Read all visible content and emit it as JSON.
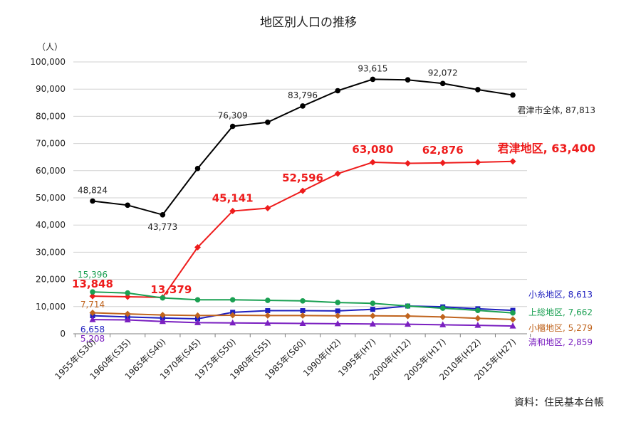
{
  "chart_data": {
    "type": "line",
    "title": "地区別人口の推移",
    "y_unit": "（人）",
    "source": "資料：住民基本台帳",
    "ylim": [
      0,
      100000
    ],
    "y_ticks": [
      "0",
      "10,000",
      "20,000",
      "30,000",
      "40,000",
      "50,000",
      "60,000",
      "70,000",
      "80,000",
      "90,000",
      "100,000"
    ],
    "categories": [
      "1955年(S30)",
      "1960年(S35)",
      "1965年(S40)",
      "1970年(S45)",
      "1975年(S50)",
      "1980年(S55)",
      "1985年(S60)",
      "1990年(H2)",
      "1995年(H7)",
      "2000年(H12)",
      "2005年(H17)",
      "2010年(H22)",
      "2015年(H27)"
    ],
    "grid": "horizontal",
    "series": [
      {
        "name": "君津市全体",
        "color": "#000000",
        "marker": "circle",
        "values": [
          48824,
          47300,
          43773,
          60800,
          76309,
          77800,
          83796,
          89400,
          93615,
          93400,
          92072,
          89800,
          87813
        ],
        "data_labels": [
          {
            "index": 0,
            "text": "48,824",
            "pos": "above"
          },
          {
            "index": 2,
            "text": "43,773",
            "pos": "below"
          },
          {
            "index": 4,
            "text": "76,309",
            "pos": "above"
          },
          {
            "index": 6,
            "text": "83,796",
            "pos": "above"
          },
          {
            "index": 8,
            "text": "93,615",
            "pos": "above"
          },
          {
            "index": 10,
            "text": "92,072",
            "pos": "above"
          }
        ],
        "end_label": "君津市全体, 87,813"
      },
      {
        "name": "君津地区",
        "color": "#ee1c1c",
        "marker": "diamond",
        "big_labels": true,
        "values": [
          13848,
          13600,
          13379,
          31800,
          45141,
          46200,
          52596,
          58900,
          63080,
          62700,
          62876,
          63100,
          63400
        ],
        "data_labels": [
          {
            "index": 0,
            "text": "13,848",
            "pos": "above"
          },
          {
            "index": 2,
            "text": "13,379",
            "pos": "below"
          },
          {
            "index": 4,
            "text": "45,141",
            "pos": "above"
          },
          {
            "index": 6,
            "text": "52,596",
            "pos": "above"
          },
          {
            "index": 8,
            "text": "63,080",
            "pos": "above"
          },
          {
            "index": 10,
            "text": "62,876",
            "pos": "above"
          }
        ],
        "end_label": "君津地区, 63,400"
      },
      {
        "name": "小糸地区",
        "color": "#1f1fbf",
        "marker": "square",
        "values": [
          6658,
          6200,
          5800,
          5500,
          7900,
          8500,
          8500,
          8400,
          9000,
          10200,
          9900,
          9200,
          8613
        ],
        "data_labels": [
          {
            "index": 0,
            "text": "6,658",
            "pos": "below"
          }
        ],
        "end_label": "小糸地区, 8,613"
      },
      {
        "name": "上総地区",
        "color": "#1aa052",
        "marker": "circle",
        "values": [
          15396,
          15000,
          13200,
          12500,
          12500,
          12300,
          12100,
          11500,
          11200,
          10200,
          9400,
          8600,
          7662
        ],
        "data_labels": [
          {
            "index": 0,
            "text": "15,396",
            "pos": "above"
          }
        ],
        "end_label": "上総地区, 7,662"
      },
      {
        "name": "小櫃地区",
        "color": "#c0641e",
        "marker": "diamond",
        "values": [
          7714,
          7300,
          6900,
          6700,
          6800,
          6700,
          6700,
          6600,
          6600,
          6500,
          6200,
          5700,
          5279
        ],
        "data_labels": [
          {
            "index": 0,
            "text": "7,714",
            "pos": "above"
          }
        ],
        "end_label": "小櫃地区, 5,279"
      },
      {
        "name": "清和地区",
        "color": "#7a1fc0",
        "marker": "triangle",
        "values": [
          5208,
          5100,
          4500,
          4100,
          4000,
          3900,
          3800,
          3700,
          3600,
          3500,
          3300,
          3100,
          2859
        ],
        "data_labels": [
          {
            "index": 0,
            "text": "5,208",
            "pos": "below"
          }
        ],
        "end_label": "清和地区, 2,859"
      }
    ]
  }
}
